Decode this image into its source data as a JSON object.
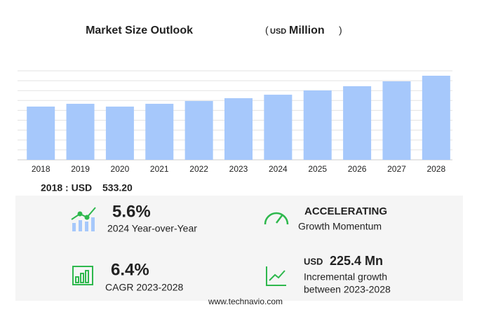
{
  "chart_data": {
    "type": "bar",
    "title": "Market Size Outlook",
    "unit_label": {
      "open": "(",
      "currency": "USD",
      "unit": "Million",
      "close": ")"
    },
    "categories": [
      "2018",
      "2019",
      "2020",
      "2021",
      "2022",
      "2023",
      "2024",
      "2025",
      "2026",
      "2027",
      "2028"
    ],
    "values": [
      533.2,
      561,
      533,
      561,
      589,
      617,
      652,
      695,
      737,
      786,
      842
    ],
    "color": "#a6c8fb",
    "grid": true
  },
  "summary": {
    "base": "2018 : USD",
    "value": "533.20"
  },
  "kpis": [
    {
      "value": "5.6%",
      "label": "2024 Year-over-Year"
    },
    {
      "value": "ACCELERATING",
      "label": "Growth Momentum"
    },
    {
      "value": "6.4%",
      "label": "CAGR 2023-2028"
    },
    {
      "currency": "USD",
      "value": "225.4 Mn",
      "label_lines": [
        "Incremental growth",
        "between 2023-2028"
      ]
    }
  ],
  "footer": "www.technavio.com"
}
